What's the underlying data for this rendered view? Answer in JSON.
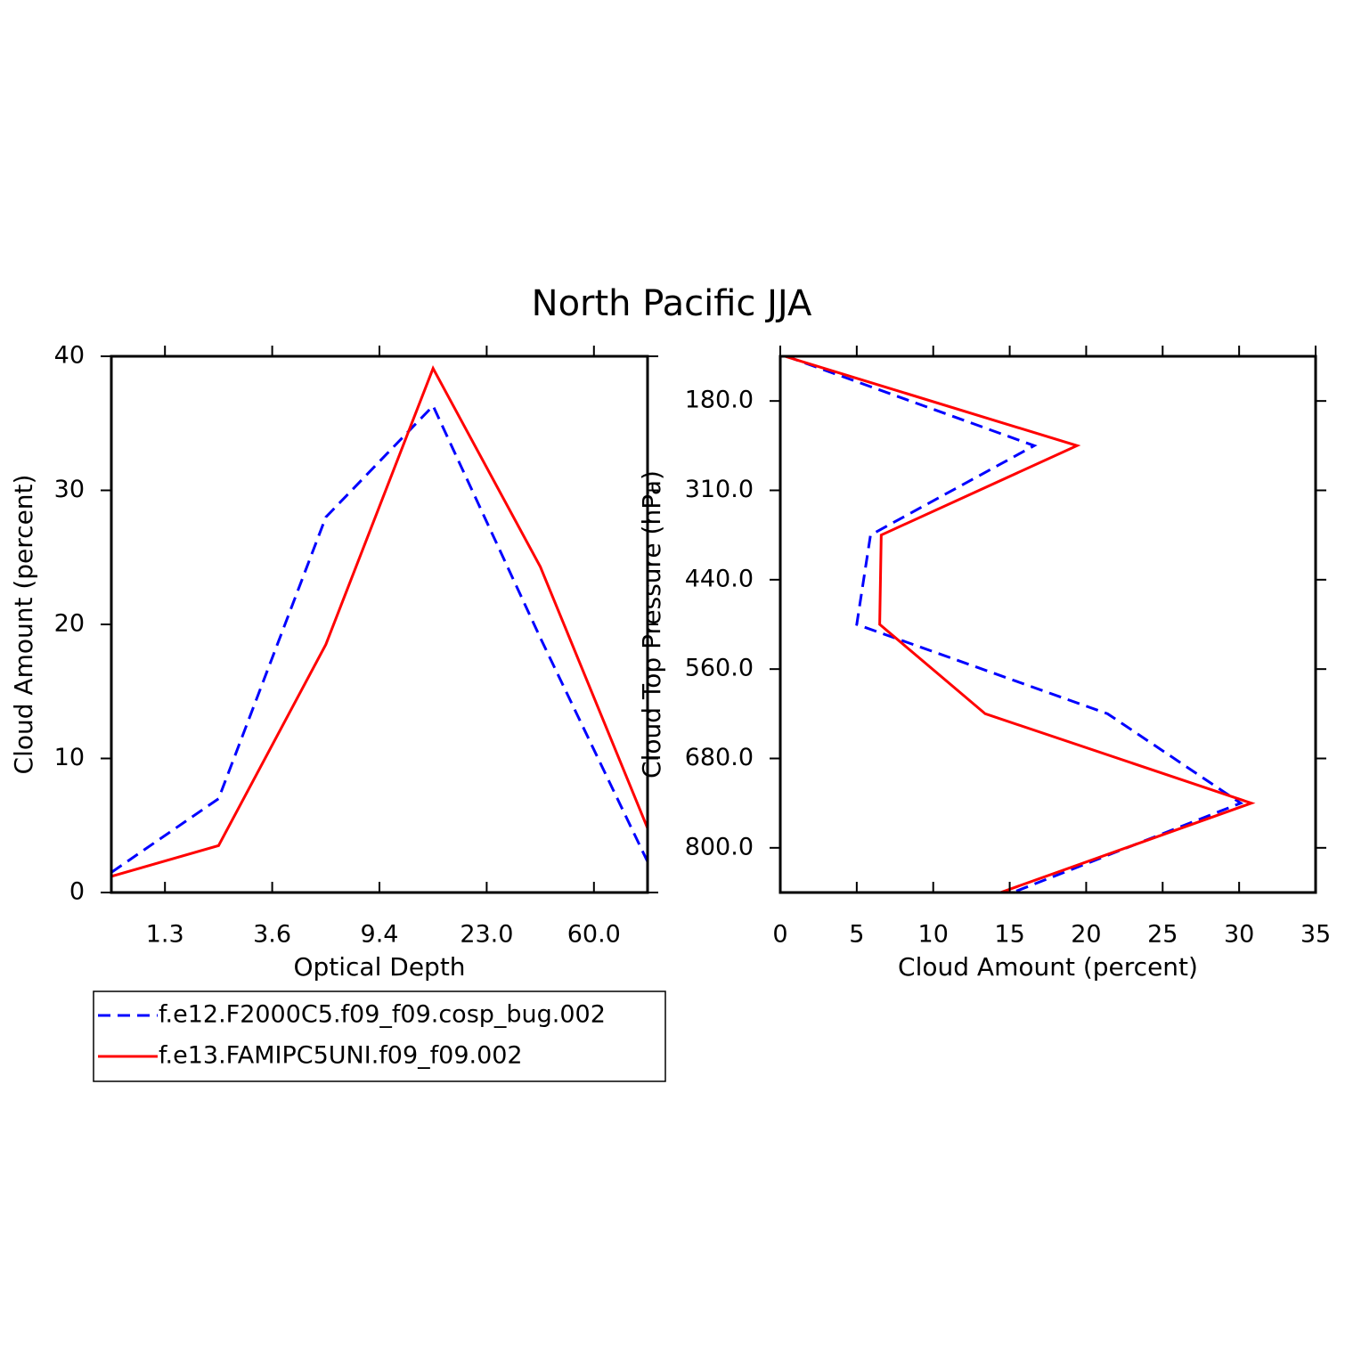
{
  "title": "North Pacific JJA",
  "chart_data": [
    {
      "type": "line",
      "xlabel": "Optical Depth",
      "ylabel": "Cloud Amount (percent)",
      "x": [
        0,
        1,
        2,
        3,
        4,
        5
      ],
      "xlim": [
        0,
        5
      ],
      "xticks": [
        {
          "value": 0.5,
          "label": "1.3"
        },
        {
          "value": 1.5,
          "label": "3.6"
        },
        {
          "value": 2.5,
          "label": "9.4"
        },
        {
          "value": 3.5,
          "label": "23.0"
        },
        {
          "value": 4.5,
          "label": "60.0"
        }
      ],
      "ylim": [
        0,
        40
      ],
      "yticks": [
        0,
        10,
        20,
        30,
        40
      ],
      "series": [
        {
          "name": "f.e12.F2000C5.f09_f09.cosp_bug.002",
          "color": "#0000ff",
          "dashed": true,
          "values": [
            1.5,
            7.0,
            28.0,
            36.3,
            19.0,
            2.3
          ]
        },
        {
          "name": "f.e13.FAMIPC5UNI.f09_f09.002",
          "color": "#ff0000",
          "dashed": false,
          "values": [
            1.2,
            3.5,
            18.5,
            39.1,
            24.3,
            4.8
          ]
        }
      ]
    },
    {
      "type": "line",
      "orientation": "horizontal",
      "xlabel": "Cloud Amount (percent)",
      "ylabel": "Cloud Top Pressure (hPa)",
      "y": [
        0,
        1,
        2,
        3,
        4,
        5,
        6
      ],
      "ylim": [
        0,
        6
      ],
      "yticks": [
        {
          "value": 0.5,
          "label": "180.0"
        },
        {
          "value": 1.5,
          "label": "310.0"
        },
        {
          "value": 2.5,
          "label": "440.0"
        },
        {
          "value": 3.5,
          "label": "560.0"
        },
        {
          "value": 4.5,
          "label": "680.0"
        },
        {
          "value": 5.5,
          "label": "800.0"
        }
      ],
      "xlim": [
        0,
        35
      ],
      "xticks": [
        0,
        5,
        10,
        15,
        20,
        25,
        30,
        35
      ],
      "series": [
        {
          "color": "#0000ff",
          "dashed": true,
          "values": [
            0.4,
            16.6,
            5.9,
            5.0,
            21.4,
            30.1,
            15.2
          ]
        },
        {
          "color": "#ff0000",
          "dashed": false,
          "values": [
            0.3,
            19.4,
            6.6,
            6.5,
            13.4,
            30.8,
            14.4
          ]
        }
      ]
    }
  ]
}
